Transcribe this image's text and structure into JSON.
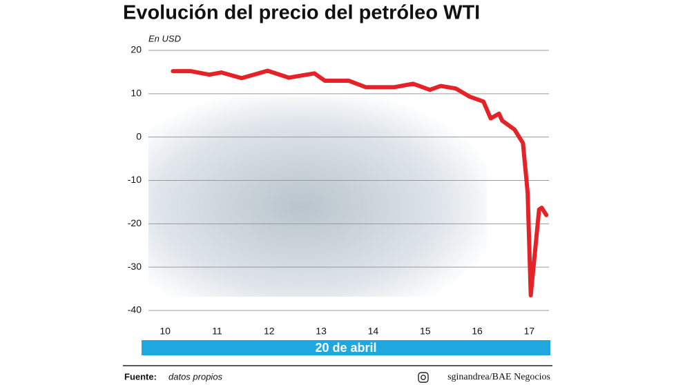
{
  "chart_data": {
    "type": "line",
    "title": "Evolución del precio del petróleo WTI",
    "ylabel": "En USD",
    "xlabel": "20 de abril",
    "source_label": "Fuente:",
    "source": "datos propios",
    "credit": "sginandrea/BAE Negocios",
    "x": [
      10.15,
      10.5,
      10.85,
      11.08,
      11.47,
      11.97,
      12.38,
      12.87,
      13.07,
      13.53,
      13.86,
      14.4,
      14.77,
      15.09,
      15.3,
      15.59,
      15.86,
      16.12,
      16.26,
      16.42,
      16.48,
      16.72,
      16.88,
      16.97,
      17.03,
      17.19,
      17.24,
      17.33
    ],
    "series": [
      {
        "color": "#e52228",
        "values": [
          15.2,
          15.2,
          14.4,
          14.9,
          13.6,
          15.3,
          13.7,
          14.7,
          13.0,
          13.0,
          11.5,
          11.5,
          12.3,
          10.9,
          11.8,
          11.2,
          9.3,
          8.2,
          4.3,
          5.4,
          3.8,
          1.7,
          -1.4,
          -12.8,
          -36.5,
          -16.7,
          -16.3,
          -18.0
        ]
      }
    ],
    "xlim": [
      9.68,
      17.38
    ],
    "ylim": [
      -40,
      20
    ],
    "xticks": [
      10,
      11,
      12,
      13,
      14,
      15,
      16,
      17
    ],
    "yticks": [
      20,
      10,
      0,
      -10,
      -20,
      -30,
      -40
    ],
    "grid": true
  }
}
